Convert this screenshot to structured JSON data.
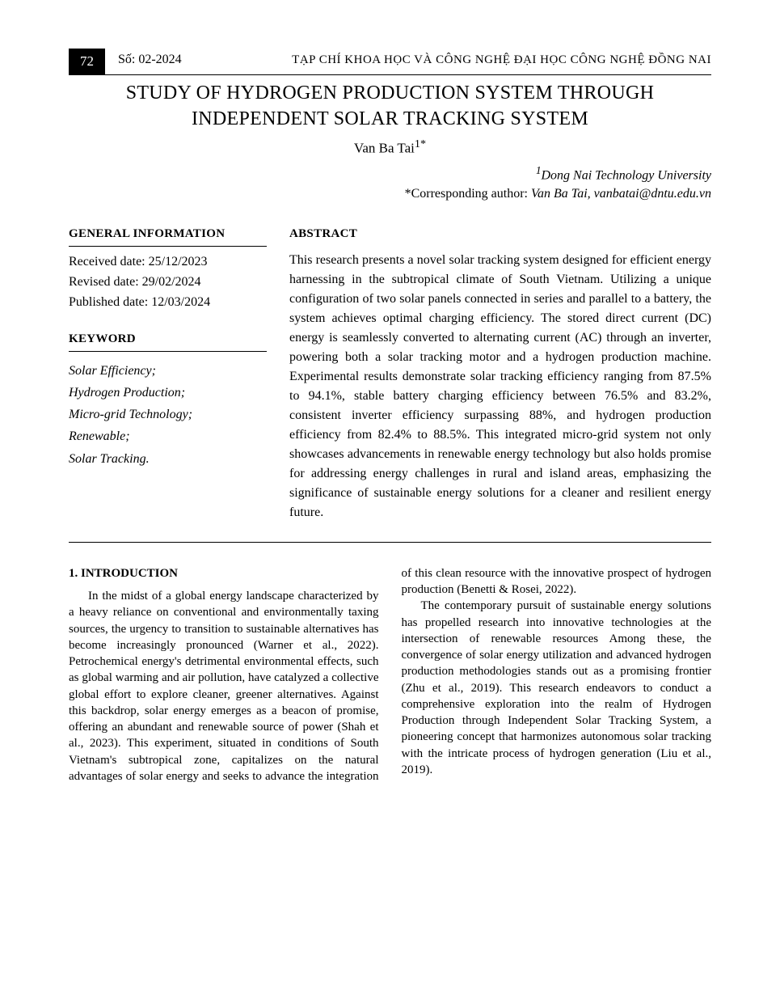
{
  "header": {
    "page_number": "72",
    "issue": "Số: 02-2024",
    "journal": "TẠP CHÍ KHOA HỌC VÀ CÔNG NGHỆ ĐẠI HỌC CÔNG NGHỆ ĐỒNG NAI"
  },
  "title": "STUDY OF HYDROGEN PRODUCTION SYSTEM THROUGH INDEPENDENT SOLAR TRACKING SYSTEM",
  "author": "Van Ba Tai",
  "author_sup": "1*",
  "affiliation_sup": "1",
  "affiliation": "Dong Nai Technology University",
  "corresponding_label": "*Corresponding author: ",
  "corresponding_value": "Van Ba Tai, vanbatai@dntu.edu.vn",
  "general_info": {
    "label": "GENERAL INFORMATION",
    "received": "Received date: 25/12/2023",
    "revised": "Revised date: 29/02/2024",
    "published": "Published date: 12/03/2024"
  },
  "keyword": {
    "label": "KEYWORD",
    "items": "Solar Efficiency;\nHydrogen Production;\nMicro-grid Technology;\nRenewable;\nSolar Tracking."
  },
  "abstract": {
    "label": "ABSTRACT",
    "text": "This research presents a novel solar tracking system designed for efficient energy harnessing in the subtropical climate of South Vietnam. Utilizing a unique configuration of two solar panels connected in series and parallel to a battery, the system achieves optimal charging efficiency. The stored direct current (DC) energy is seamlessly converted to alternating current (AC) through an inverter, powering both a solar tracking motor and a hydrogen production machine. Experimental results demonstrate solar tracking efficiency ranging from 87.5% to 94.1%, stable battery charging efficiency between 76.5% and 83.2%, consistent inverter efficiency surpassing 88%, and hydrogen production efficiency from 82.4% to 88.5%. This integrated micro-grid system not only showcases advancements in renewable energy technology but also holds promise for addressing energy challenges in rural and island areas, emphasizing the significance of sustainable energy solutions for a cleaner and resilient energy future."
  },
  "body": {
    "heading": "1. INTRODUCTION",
    "para1": "In the midst of a global energy landscape characterized by a heavy reliance on conventional and environmentally taxing sources, the urgency to transition to sustainable alternatives has become increasingly pronounced (Warner et al., 2022). Petrochemical energy's detrimental environmental effects, such as global warming and air pollution, have catalyzed a collective global effort to explore cleaner, greener alternatives. Against this backdrop, solar energy emerges as a beacon of promise, offering an abundant and renewable source of power (Shah et al., 2023). This experiment, situated in conditions of South Vietnam's subtropical zone, capitalizes on the natural advantages of solar energy and seeks to advance the integration of this clean resource with the innovative prospect of hydrogen production (Benetti & Rosei, 2022).",
    "para2": "The contemporary pursuit of sustainable energy solutions has propelled research into innovative technologies at the intersection of renewable resources Among these, the convergence of solar energy utilization and advanced hydrogen production methodologies stands out as a promising frontier (Zhu et al., 2019). This research endeavors to conduct a comprehensive exploration into the realm of Hydrogen Production through Independent Solar Tracking System, a pioneering concept that harmonizes autonomous solar tracking with the intricate process of hydrogen generation (Liu et al., 2019)."
  },
  "colors": {
    "text": "#000000",
    "background": "#ffffff",
    "badge_bg": "#000000",
    "badge_fg": "#ffffff"
  }
}
